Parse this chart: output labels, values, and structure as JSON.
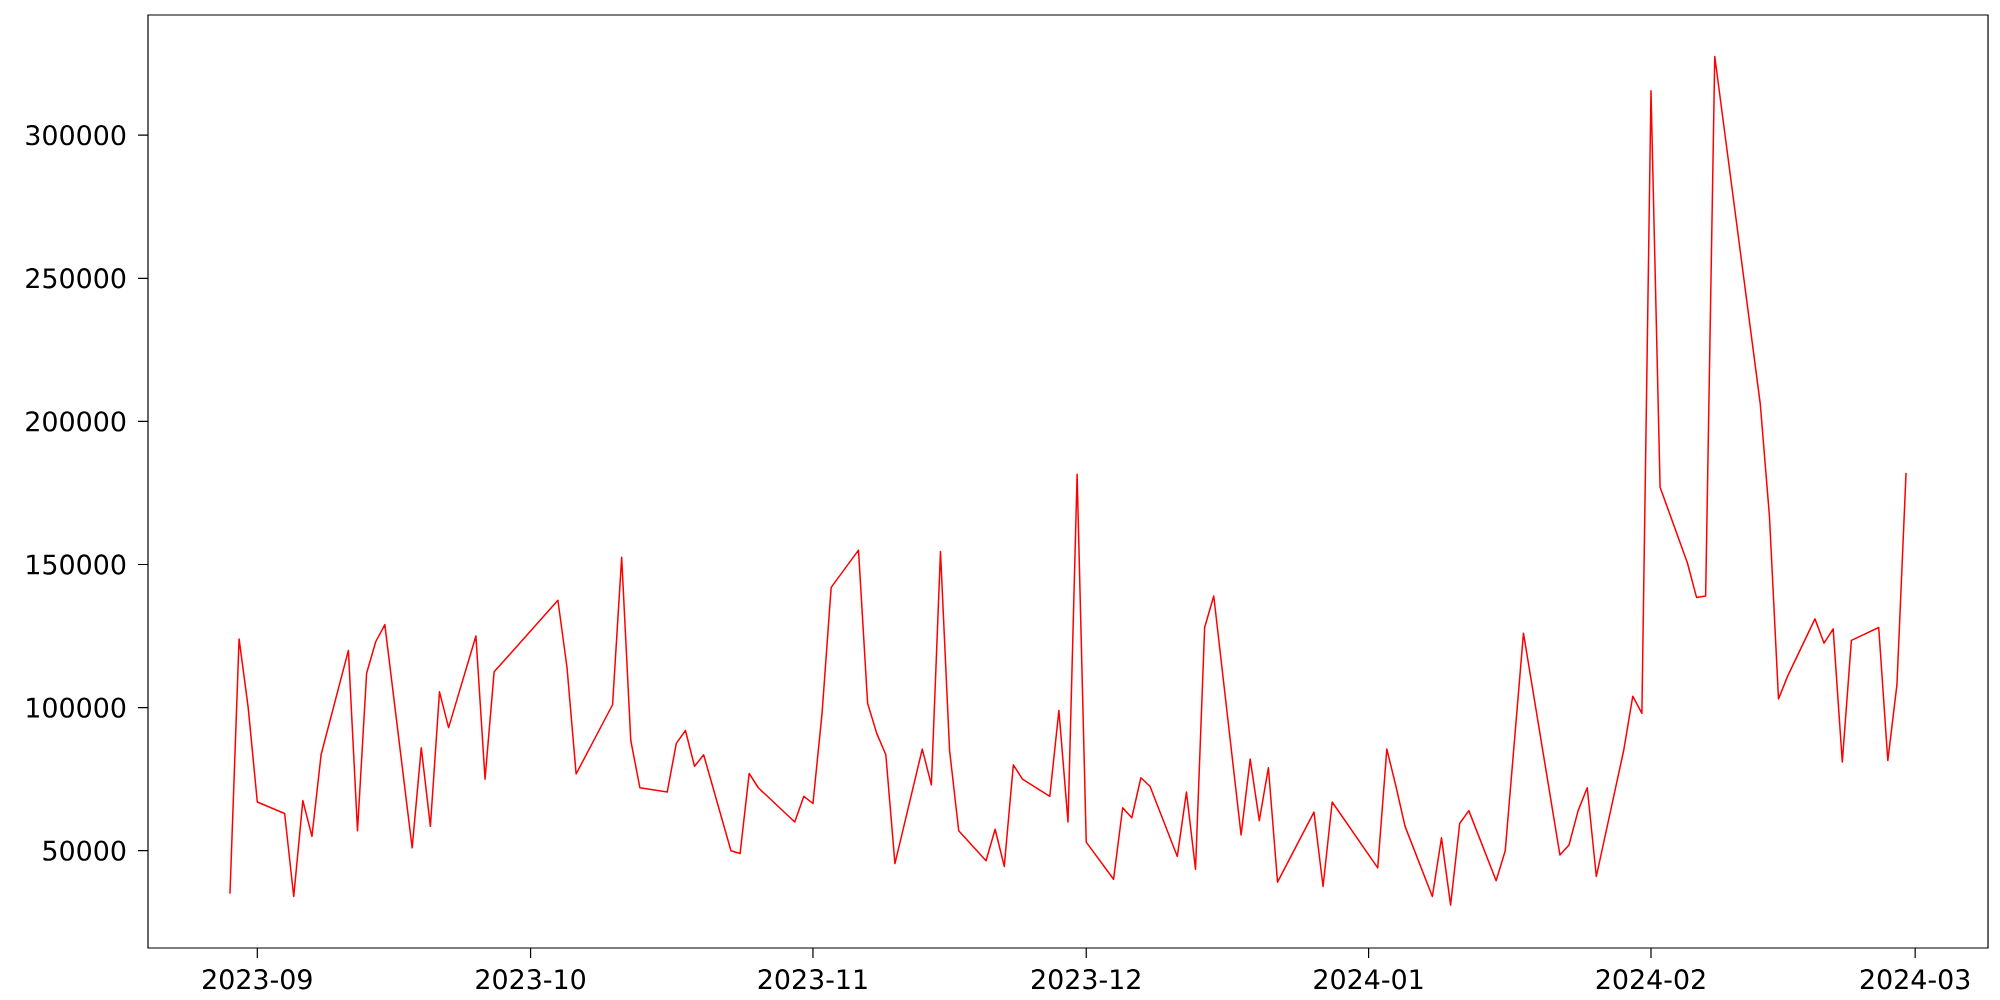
{
  "chart_data": {
    "type": "line",
    "color": "#ff0000",
    "x": [
      "2023-08-29",
      "2023-08-30",
      "2023-08-31",
      "2023-09-01",
      "2023-09-04",
      "2023-09-05",
      "2023-09-06",
      "2023-09-07",
      "2023-09-08",
      "2023-09-11",
      "2023-09-12",
      "2023-09-13",
      "2023-09-14",
      "2023-09-15",
      "2023-09-18",
      "2023-09-19",
      "2023-09-20",
      "2023-09-21",
      "2023-09-22",
      "2023-09-25",
      "2023-09-26",
      "2023-09-27",
      "2023-10-04",
      "2023-10-05",
      "2023-10-06",
      "2023-10-10",
      "2023-10-11",
      "2023-10-12",
      "2023-10-13",
      "2023-10-16",
      "2023-10-17",
      "2023-10-18",
      "2023-10-19",
      "2023-10-20",
      "2023-10-23",
      "2023-10-24",
      "2023-10-25",
      "2023-10-26",
      "2023-10-27",
      "2023-10-30",
      "2023-10-31",
      "2023-11-01",
      "2023-11-02",
      "2023-11-03",
      "2023-11-06",
      "2023-11-07",
      "2023-11-08",
      "2023-11-09",
      "2023-11-10",
      "2023-11-13",
      "2023-11-14",
      "2023-11-15",
      "2023-11-16",
      "2023-11-17",
      "2023-11-20",
      "2023-11-21",
      "2023-11-22",
      "2023-11-23",
      "2023-11-24",
      "2023-11-27",
      "2023-11-28",
      "2023-11-29",
      "2023-11-30",
      "2023-12-01",
      "2023-12-04",
      "2023-12-05",
      "2023-12-06",
      "2023-12-07",
      "2023-12-08",
      "2023-12-11",
      "2023-12-12",
      "2023-12-13",
      "2023-12-14",
      "2023-12-15",
      "2023-12-18",
      "2023-12-19",
      "2023-12-20",
      "2023-12-21",
      "2023-12-22",
      "2023-12-26",
      "2023-12-27",
      "2023-12-28",
      "2024-01-02",
      "2024-01-03",
      "2024-01-04",
      "2024-01-05",
      "2024-01-08",
      "2024-01-09",
      "2024-01-10",
      "2024-01-11",
      "2024-01-12",
      "2024-01-15",
      "2024-01-16",
      "2024-01-18",
      "2024-01-22",
      "2024-01-23",
      "2024-01-24",
      "2024-01-25",
      "2024-01-26",
      "2024-01-29",
      "2024-01-30",
      "2024-01-31",
      "2024-02-01",
      "2024-02-02",
      "2024-02-05",
      "2024-02-06",
      "2024-02-07",
      "2024-02-08",
      "2024-02-13",
      "2024-02-14",
      "2024-02-15",
      "2024-02-16",
      "2024-02-19",
      "2024-02-20",
      "2024-02-21",
      "2024-02-22",
      "2024-02-23",
      "2024-02-26",
      "2024-02-27",
      "2024-02-28",
      "2024-02-29"
    ],
    "values": [
      35000,
      124000,
      100000,
      67000,
      63000,
      34000,
      67500,
      55000,
      83500,
      120000,
      57000,
      112000,
      123000,
      129000,
      51000,
      86000,
      58500,
      105500,
      93000,
      125000,
      75000,
      112500,
      137500,
      114000,
      76800,
      101000,
      152500,
      88500,
      72000,
      70500,
      87500,
      92000,
      79500,
      83500,
      50000,
      49000,
      77000,
      72000,
      69000,
      60000,
      69000,
      66500,
      98000,
      142000,
      155000,
      101500,
      91000,
      83500,
      45500,
      85500,
      73000,
      154500,
      85000,
      57000,
      46500,
      57500,
      44500,
      80000,
      75000,
      69000,
      99000,
      60000,
      181500,
      53000,
      40000,
      65000,
      61500,
      75500,
      72500,
      48000,
      70500,
      43500,
      128000,
      139000,
      55500,
      82000,
      60500,
      79000,
      39000,
      63500,
      37500,
      67000,
      44000,
      85500,
      72500,
      58500,
      34000,
      54500,
      31000,
      59500,
      64000,
      39500,
      50000,
      126000,
      48500,
      52000,
      64000,
      72000,
      41000,
      85000,
      104000,
      98000,
      315500,
      177000,
      150500,
      138500,
      139000,
      327500,
      206000,
      167000,
      103000,
      111000,
      131000,
      122500,
      127500,
      81000,
      123500,
      128000,
      81500,
      108000,
      182000
    ],
    "xlim": [
      "2023-08-20",
      "2024-03-09"
    ],
    "ylim": [
      16000,
      342000
    ],
    "xticks": [
      {
        "value": "2023-09-01",
        "label": "2023-09"
      },
      {
        "value": "2023-10-01",
        "label": "2023-10"
      },
      {
        "value": "2023-11-01",
        "label": "2023-11"
      },
      {
        "value": "2023-12-01",
        "label": "2023-12"
      },
      {
        "value": "2024-01-01",
        "label": "2024-01"
      },
      {
        "value": "2024-02-01",
        "label": "2024-02"
      },
      {
        "value": "2024-03-01",
        "label": "2024-03"
      }
    ],
    "yticks": [
      50000,
      100000,
      150000,
      200000,
      250000,
      300000
    ]
  }
}
